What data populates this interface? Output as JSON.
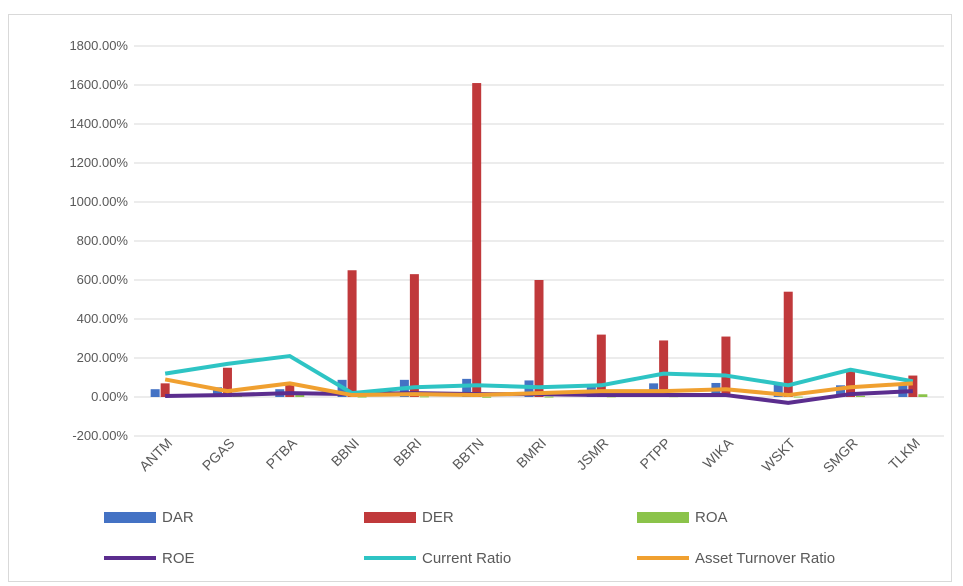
{
  "chart_data": {
    "type": "bar+line",
    "categories": [
      "ANTM",
      "PGAS",
      "PTBA",
      "BBNI",
      "BBRI",
      "BBTN",
      "BMRI",
      "JSMR",
      "PTPP",
      "WIKA",
      "WSKT",
      "SMGR",
      "TLKM"
    ],
    "ylim": [
      -200,
      1800
    ],
    "yticks": [
      -200,
      0,
      200,
      400,
      600,
      800,
      1000,
      1200,
      1400,
      1600,
      1800
    ],
    "ytick_labels": [
      "-200.00%",
      "0.00%",
      "200.00%",
      "400.00%",
      "600.00%",
      "800.00%",
      "1000.00%",
      "1200.00%",
      "1400.00%",
      "1600.00%",
      "1800.00%"
    ],
    "grid": true,
    "legend_position": "bottom",
    "series": [
      {
        "name": "DAR",
        "kind": "bar",
        "color": "#4472c4",
        "values": [
          40,
          50,
          40,
          88,
          88,
          93,
          85,
          60,
          70,
          72,
          75,
          60,
          70
        ]
      },
      {
        "name": "DER",
        "kind": "bar",
        "color": "#c0393b",
        "values": [
          70,
          150,
          70,
          650,
          630,
          1610,
          600,
          320,
          290,
          310,
          540,
          130,
          110
        ]
      },
      {
        "name": "ROA",
        "kind": "bar",
        "color": "#8bc34a",
        "values": [
          3,
          5,
          10,
          2,
          3,
          1,
          2,
          3,
          4,
          3,
          2,
          6,
          14
        ]
      },
      {
        "name": "ROE",
        "kind": "line",
        "color": "#5b2d8e",
        "values": [
          5,
          10,
          20,
          15,
          20,
          15,
          15,
          10,
          10,
          10,
          -30,
          15,
          30
        ]
      },
      {
        "name": "Current Ratio",
        "kind": "line",
        "color": "#2ec4c4",
        "values": [
          120,
          170,
          210,
          20,
          50,
          60,
          50,
          60,
          120,
          110,
          60,
          140,
          80
        ]
      },
      {
        "name": "Asset Turnover Ratio",
        "kind": "line",
        "color": "#f0a030",
        "values": [
          90,
          30,
          70,
          10,
          15,
          10,
          20,
          30,
          30,
          40,
          10,
          50,
          70
        ]
      }
    ]
  }
}
